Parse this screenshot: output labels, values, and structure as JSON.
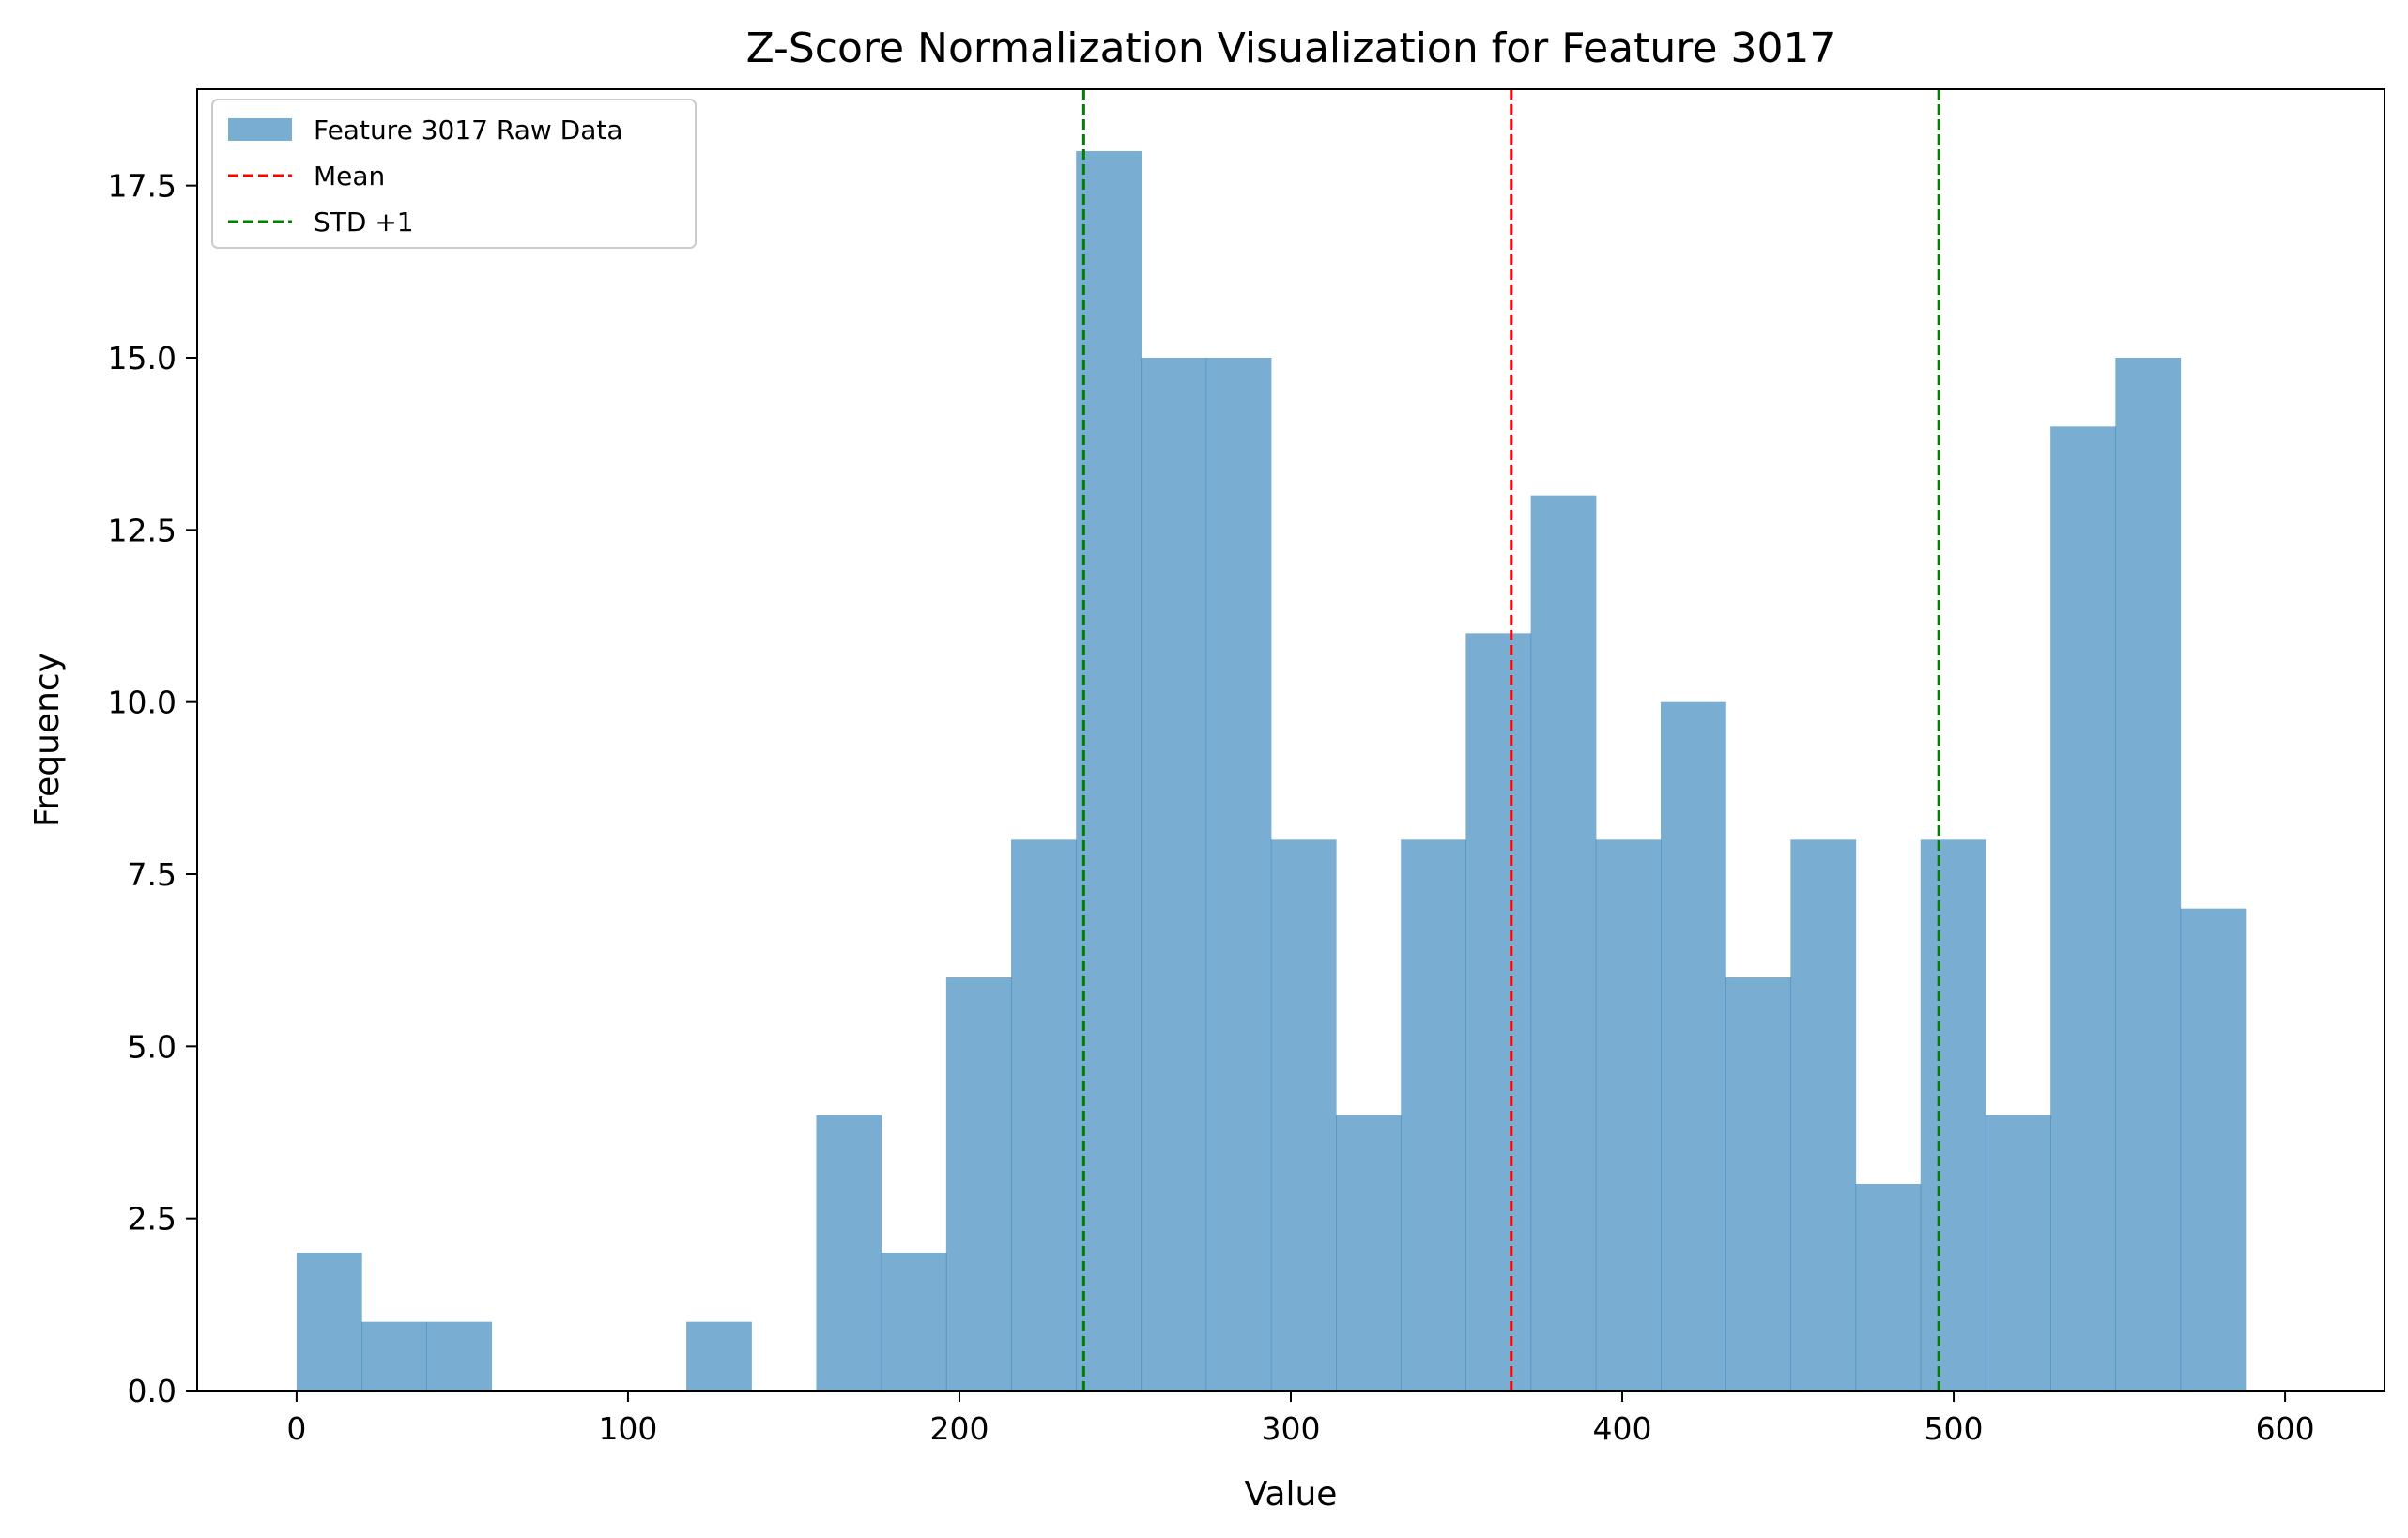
{
  "chart_data": {
    "type": "bar",
    "title": "Z-Score Normalization Visualization for Feature 3017",
    "xlabel": "Value",
    "ylabel": "Frequency",
    "xlim": [
      -30,
      630
    ],
    "ylim": [
      0,
      18.9
    ],
    "xticks": [
      0,
      100,
      200,
      300,
      400,
      500,
      600
    ],
    "xtick_labels": [
      "0",
      "100",
      "200",
      "300",
      "400",
      "500",
      "600"
    ],
    "yticks": [
      0,
      2.5,
      5,
      7.5,
      10,
      12.5,
      15,
      17.5
    ],
    "ytick_labels": [
      "0.0",
      "2.5",
      "5.0",
      "7.5",
      "10.0",
      "12.5",
      "15.0",
      "17.5"
    ],
    "grid": false,
    "legend_position": "top-left",
    "histogram": {
      "name": "Feature 3017 Raw Data",
      "color": "#1f77b4",
      "alpha": 0.6,
      "bin_start": 0,
      "bin_width": 19.6,
      "counts": [
        2,
        1,
        1,
        0,
        0,
        0,
        1,
        0,
        4,
        2,
        6,
        8,
        18,
        15,
        15,
        8,
        4,
        8,
        11,
        13,
        8,
        10,
        6,
        8,
        3,
        8,
        4,
        14,
        15,
        7
      ]
    },
    "reference_lines": [
      {
        "name": "Mean",
        "x": 366.5,
        "color": "#ff0000",
        "style": "dashed"
      },
      {
        "name": "STD +1",
        "x": 495.5,
        "color": "#008000",
        "style": "dashed",
        "in_legend": true
      },
      {
        "name": "STD -1",
        "x": 237.5,
        "color": "#008000",
        "style": "dashed",
        "in_legend": false
      }
    ],
    "legend": [
      {
        "label": "Feature 3017 Raw Data",
        "kind": "patch",
        "color": "#1f77b4"
      },
      {
        "label": "Mean",
        "kind": "dashed-line",
        "color": "#ff0000"
      },
      {
        "label": "STD +1",
        "kind": "dashed-line",
        "color": "#008000"
      }
    ]
  }
}
